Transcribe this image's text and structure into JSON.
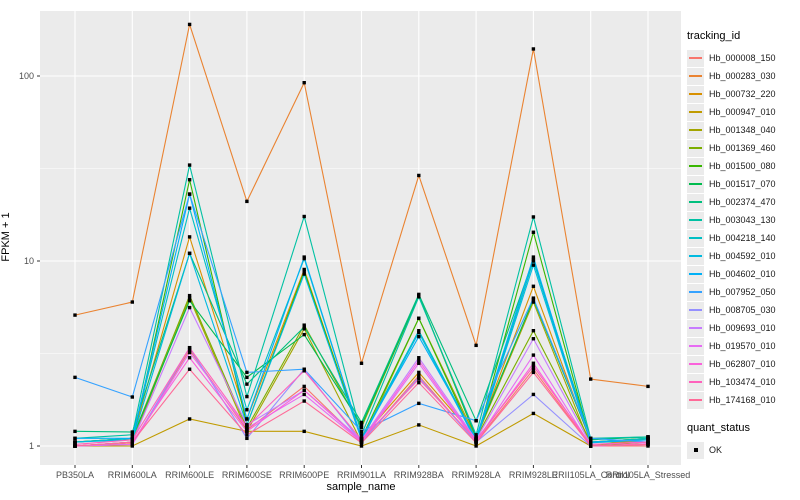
{
  "chart_data": {
    "type": "line",
    "title": "",
    "xlabel": "sample_name",
    "ylabel": "FPKM + 1",
    "y_scale": "log10",
    "ylim": [
      0.9,
      225
    ],
    "y_ticks": [
      "1",
      "10",
      "100"
    ],
    "grid": true,
    "panel_bg": "#EBEBEB",
    "grid_color": "#FFFFFF",
    "axis_text_color": "#4D4D4D",
    "tick_color": "#333333",
    "point_color": "#000000",
    "point_shape": "square",
    "legend_position": "right",
    "legend_title": "tracking_id",
    "quant_legend": {
      "title": "quant_status",
      "items": [
        "OK"
      ]
    },
    "categories": [
      "PB350LA",
      "RRIM600LA",
      "RRIM600LE",
      "RRIM600SE",
      "RRIM600PE",
      "RRIM901LA",
      "RRIM928BA",
      "RRIM928LA",
      "RRIM928LE",
      "RRII105LA_Control",
      "RRII105LA_Stressed"
    ],
    "series": [
      {
        "name": "Hb_000008_150",
        "color": "#F8766D",
        "values": [
          1.0,
          1.03,
          3.3,
          1.22,
          2.1,
          1.05,
          2.4,
          1.05,
          2.6,
          1.0,
          1.0
        ]
      },
      {
        "name": "Hb_000283_030",
        "color": "#EA8331",
        "values": [
          5.1,
          6.0,
          190,
          21,
          92,
          2.8,
          29,
          3.5,
          140,
          2.3,
          2.1
        ]
      },
      {
        "name": "Hb_000732_220",
        "color": "#D89000",
        "values": [
          1.05,
          1.1,
          13.5,
          1.4,
          9.0,
          1.1,
          2.5,
          1.1,
          7.3,
          1.05,
          1.05
        ]
      },
      {
        "name": "Hb_000947_010",
        "color": "#C09B00",
        "values": [
          1.0,
          1.0,
          1.4,
          1.2,
          1.2,
          1.0,
          1.3,
          1.0,
          1.5,
          1.0,
          1.1
        ]
      },
      {
        "name": "Hb_001348_040",
        "color": "#A3A500",
        "values": [
          1.0,
          1.05,
          6.3,
          1.2,
          4.3,
          1.05,
          4.9,
          1.1,
          6.0,
          1.0,
          1.05
        ]
      },
      {
        "name": "Hb_001369_460",
        "color": "#7CAE00",
        "values": [
          1.05,
          1.1,
          6.5,
          1.25,
          4.5,
          1.26,
          6.5,
          1.1,
          4.2,
          1.05,
          1.1
        ]
      },
      {
        "name": "Hb_001500_080",
        "color": "#39B600",
        "values": [
          1.0,
          1.05,
          27.5,
          1.3,
          8.8,
          1.1,
          4.9,
          1.05,
          14.3,
          1.05,
          1.1
        ]
      },
      {
        "name": "Hb_001517_070",
        "color": "#00BB4E",
        "values": [
          1.05,
          1.1,
          6.1,
          2.35,
          4.0,
          1.3,
          6.5,
          1.12,
          6.2,
          1.08,
          1.12
        ]
      },
      {
        "name": "Hb_002374_470",
        "color": "#00BF7D",
        "values": [
          1.2,
          1.19,
          11.0,
          2.16,
          4.4,
          1.34,
          6.6,
          1.37,
          10.2,
          1.09,
          1.12
        ]
      },
      {
        "name": "Hb_003043_130",
        "color": "#00C1A3",
        "values": [
          1.1,
          1.15,
          33,
          1.85,
          17.4,
          1.15,
          6.4,
          1.15,
          17.3,
          1.1,
          1.12
        ]
      },
      {
        "name": "Hb_004218_140",
        "color": "#00BFC4",
        "values": [
          1.05,
          1.1,
          19.3,
          1.57,
          10.3,
          1.1,
          4.2,
          1.08,
          10.0,
          1.05,
          1.1
        ]
      },
      {
        "name": "Hb_004592_010",
        "color": "#00BAE0",
        "values": [
          1.05,
          1.08,
          11.0,
          1.3,
          8.5,
          1.08,
          4.1,
          1.06,
          9.5,
          1.04,
          1.08
        ]
      },
      {
        "name": "Hb_004602_010",
        "color": "#00B0F6",
        "values": [
          1.1,
          1.1,
          23,
          1.4,
          10.5,
          1.1,
          3.9,
          1.1,
          10.5,
          1.05,
          1.08
        ]
      },
      {
        "name": "Hb_007952_050",
        "color": "#35A2FF",
        "values": [
          2.35,
          1.84,
          23,
          2.5,
          2.6,
          1.2,
          1.7,
          1.37,
          6.3,
          1.1,
          1.05
        ]
      },
      {
        "name": "Hb_008705_030",
        "color": "#9590FF",
        "values": [
          1.0,
          1.02,
          3.4,
          1.1,
          2.6,
          1.05,
          2.35,
          1.05,
          1.9,
          1.0,
          1.02
        ]
      },
      {
        "name": "Hb_009693_010",
        "color": "#C77CFF",
        "values": [
          1.0,
          1.05,
          5.6,
          1.3,
          2.0,
          1.08,
          3.0,
          1.08,
          3.8,
          1.02,
          1.05
        ]
      },
      {
        "name": "Hb_019570_010",
        "color": "#E76BF3",
        "values": [
          1.0,
          1.02,
          3.2,
          1.25,
          1.9,
          1.05,
          2.8,
          1.05,
          3.1,
          1.0,
          1.02
        ]
      },
      {
        "name": "Hb_062807_010",
        "color": "#FA62DB",
        "values": [
          1.0,
          1.05,
          3.0,
          1.2,
          2.0,
          1.06,
          2.9,
          1.06,
          2.8,
          1.0,
          1.03
        ]
      },
      {
        "name": "Hb_103474_010",
        "color": "#FF62BC",
        "values": [
          1.02,
          1.08,
          3.4,
          1.27,
          2.55,
          1.08,
          2.3,
          1.08,
          2.7,
          1.02,
          1.05
        ]
      },
      {
        "name": "Hb_174168_010",
        "color": "#FF6A98",
        "values": [
          1.0,
          1.05,
          2.6,
          1.15,
          1.75,
          1.04,
          2.2,
          1.04,
          2.5,
          1.0,
          1.02
        ]
      }
    ]
  }
}
